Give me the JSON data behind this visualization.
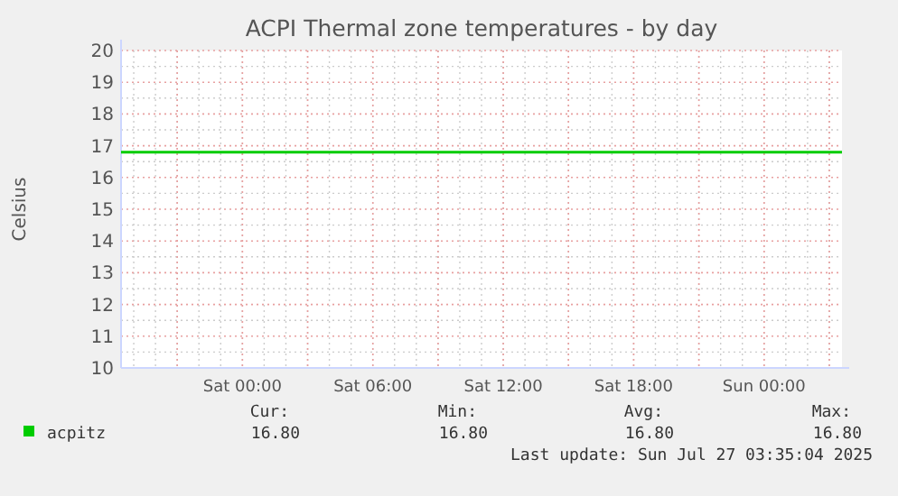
{
  "chart_data": {
    "type": "line",
    "title": "ACPI Thermal zone temperatures - by day",
    "ylabel": "Celsius",
    "x": [
      "2025-07-25T18:25",
      "2025-07-26T06:00",
      "2025-07-26T18:00",
      "2025-07-27T03:35"
    ],
    "series": [
      {
        "name": "acpitz",
        "color": "#00cc00",
        "values": [
          16.8,
          16.8,
          16.8,
          16.8
        ]
      }
    ],
    "xlim": [
      "2025-07-25T18:25",
      "2025-07-27T03:35"
    ],
    "xticks": [
      {
        "value": "2025-07-25T21:00",
        "label": null
      },
      {
        "value": "2025-07-26T00:00",
        "label": "Sat 00:00"
      },
      {
        "value": "2025-07-26T03:00",
        "label": null
      },
      {
        "value": "2025-07-26T06:00",
        "label": "Sat 06:00"
      },
      {
        "value": "2025-07-26T09:00",
        "label": null
      },
      {
        "value": "2025-07-26T12:00",
        "label": "Sat 12:00"
      },
      {
        "value": "2025-07-26T15:00",
        "label": null
      },
      {
        "value": "2025-07-26T18:00",
        "label": "Sat 18:00"
      },
      {
        "value": "2025-07-26T21:00",
        "label": null
      },
      {
        "value": "2025-07-27T00:00",
        "label": "Sun 00:00"
      },
      {
        "value": "2025-07-27T03:00",
        "label": null
      }
    ],
    "ylim": [
      10,
      20
    ],
    "yticks": [
      10,
      11,
      12,
      13,
      14,
      15,
      16,
      17,
      18,
      19,
      20
    ],
    "grid": true,
    "legend": "bottom",
    "marker": "none",
    "annotations": [
      "Cur:",
      "Min:",
      "Avg:",
      "Max:",
      "16.80",
      "16.80",
      "16.80",
      "16.80",
      "Last update: Sun Jul 27 03:35:04 2025"
    ]
  }
}
